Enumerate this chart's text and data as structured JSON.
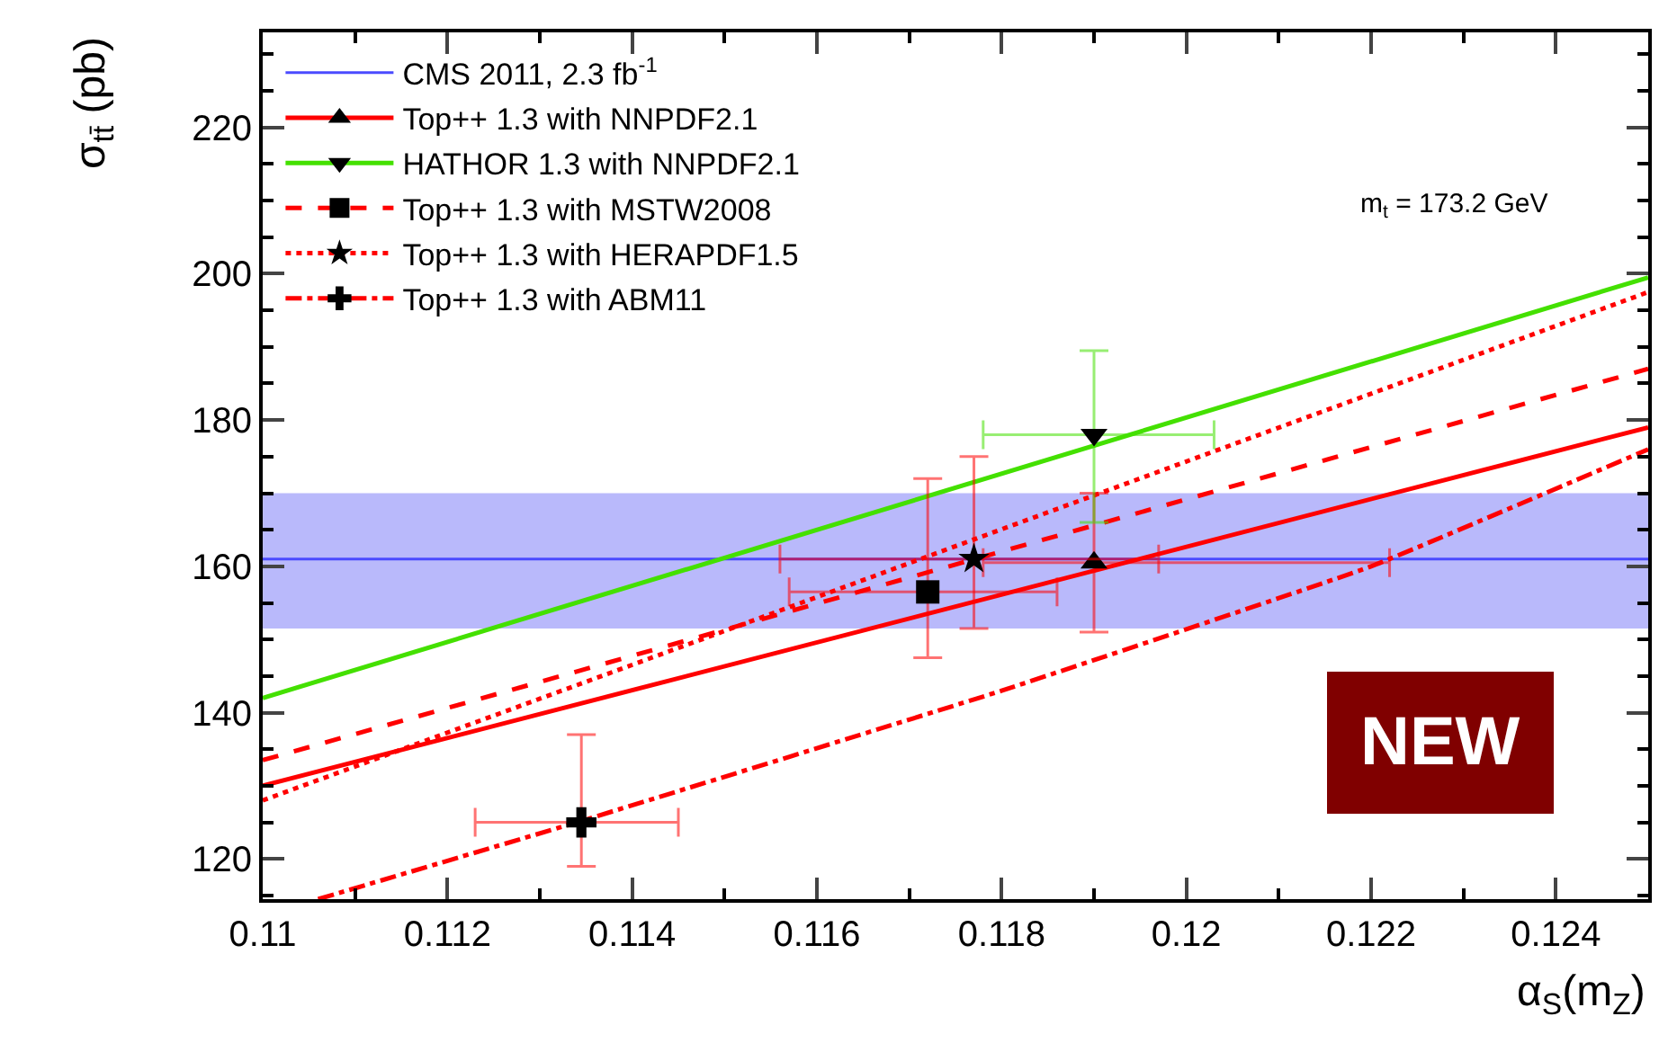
{
  "chart_data": {
    "type": "line",
    "xlabel": "α$_{S}$(m$_{Z}$)",
    "ylabel": "σ$_{tt̄}$ (pb)",
    "annotations": [
      "m$_{t}$ = 173.2 GeV",
      "NEW"
    ],
    "xlim": [
      0.11,
      0.125
    ],
    "xticks": [
      0.11,
      0.112,
      0.114,
      0.116,
      0.118,
      0.12,
      0.122,
      0.124
    ],
    "ylim": [
      114.5,
      233
    ],
    "yticks": [
      120,
      140,
      160,
      180,
      200,
      220
    ],
    "legend": "top left",
    "ref_lines": [
      {
        "axis": "y",
        "value": 161,
        "label": "CMS 2011, 2.3 fb$^{-1}$",
        "color": "#4b4bff"
      }
    ],
    "bands": [
      {
        "axis": "y",
        "from": 151.5,
        "to": 170,
        "color": "#b9b9fb"
      }
    ],
    "series": [
      {
        "name": "Top++ 1.3 with NNPDF2.1",
        "color": "#ff0000",
        "line_style": "solid",
        "x": [
          0.11,
          0.125
        ],
        "values": [
          130,
          179
        ]
      },
      {
        "name": "HATHOR 1.3 with NNPDF2.1",
        "color": "#44e000",
        "line_style": "solid",
        "x": [
          0.11,
          0.125
        ],
        "values": [
          142,
          199.5
        ]
      },
      {
        "name": "Top++ 1.3 with MSTW2008",
        "color": "#ff0000",
        "line_style": "dashed",
        "x": [
          0.11,
          0.125
        ],
        "values": [
          133.5,
          187
        ]
      },
      {
        "name": "Top++ 1.3 with HERAPDF1.5",
        "color": "#ff0000",
        "line_style": "dotted",
        "x": [
          0.11,
          0.125
        ],
        "values": [
          128,
          197.5
        ]
      },
      {
        "name": "Top++ 1.3 with ABM11",
        "color": "#ff0000",
        "line_style": "dashdot",
        "x": [
          0.1106,
          0.1134,
          0.118,
          0.122,
          0.125
        ],
        "values": [
          114.5,
          125,
          143,
          160,
          176
        ]
      },
      {
        "type": "scatter",
        "color": "#000000",
        "marker": "triangle",
        "x": [
          0.119
        ],
        "values": [
          160.5
        ],
        "errors": [
          [
            151,
            170
          ]
        ],
        "xerrors": [
          [
            0.1178,
            0.1222
          ]
        ]
      },
      {
        "type": "scatter",
        "color": "#000000",
        "marker": "triangle-down",
        "x": [
          0.119
        ],
        "values": [
          178
        ],
        "errors": [
          [
            166,
            189.5
          ]
        ],
        "xerrors": [
          [
            0.1178,
            0.1203
          ]
        ]
      },
      {
        "type": "scatter",
        "color": "#000000",
        "marker": "square",
        "x": [
          0.1172
        ],
        "values": [
          156.5
        ],
        "errors": [
          [
            147.5,
            172
          ]
        ],
        "xerrors": [
          [
            0.1157,
            0.1186
          ]
        ]
      },
      {
        "type": "scatter",
        "color": "#000000",
        "marker": "star",
        "x": [
          0.1177
        ],
        "values": [
          161
        ],
        "errors": [
          [
            151.5,
            175
          ]
        ],
        "xerrors": [
          [
            0.1156,
            0.1197
          ]
        ]
      },
      {
        "type": "scatter",
        "color": "#000000",
        "marker": "cross",
        "x": [
          0.11345
        ],
        "values": [
          125
        ],
        "errors": [
          [
            119,
            137
          ]
        ],
        "xerrors": [
          [
            0.1123,
            0.1145
          ]
        ]
      }
    ]
  }
}
